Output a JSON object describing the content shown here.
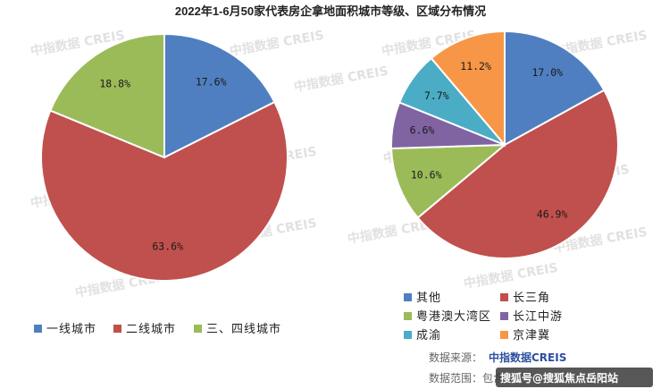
{
  "title": "2022年1-6月50家代表房企拿地面积城市等级、区域分布情况",
  "watermark": "中指数据 CREIS",
  "colors": {
    "blue": "#4f7fc0",
    "red": "#c0504d",
    "green": "#9bbb59",
    "purple": "#8064a2",
    "cyan": "#4bacc6",
    "orange": "#f79646"
  },
  "chart_data": [
    {
      "type": "pie",
      "title": "",
      "slices": [
        {
          "name": "一线城市",
          "value": 17.6,
          "label": "17.6%",
          "color": "blue"
        },
        {
          "name": "二线城市",
          "value": 63.6,
          "label": "63.6%",
          "color": "red"
        },
        {
          "name": "三、四线城市",
          "value": 18.8,
          "label": "18.8%",
          "color": "green"
        }
      ],
      "legend_position": "bottom"
    },
    {
      "type": "pie",
      "title": "",
      "slices": [
        {
          "name": "其他",
          "value": 17.0,
          "label": "17.0%",
          "color": "blue"
        },
        {
          "name": "长三角",
          "value": 46.9,
          "label": "46.9%",
          "color": "red"
        },
        {
          "name": "粤港澳大湾区",
          "value": 10.6,
          "label": "10.6%",
          "color": "green"
        },
        {
          "name": "长江中游",
          "value": 6.6,
          "label": "6.6%",
          "color": "purple"
        },
        {
          "name": "成渝",
          "value": 7.7,
          "label": "7.7%",
          "color": "cyan"
        },
        {
          "name": "京津冀",
          "value": 11.2,
          "label": "11.2%",
          "color": "orange"
        }
      ],
      "legend_position": "bottom"
    }
  ],
  "source": {
    "prefix": "数据来源：",
    "name": "中指数据CREIS",
    "range_prefix": "数据范围：包含",
    "badge": "搜狐号@搜狐焦点岳阳站"
  }
}
